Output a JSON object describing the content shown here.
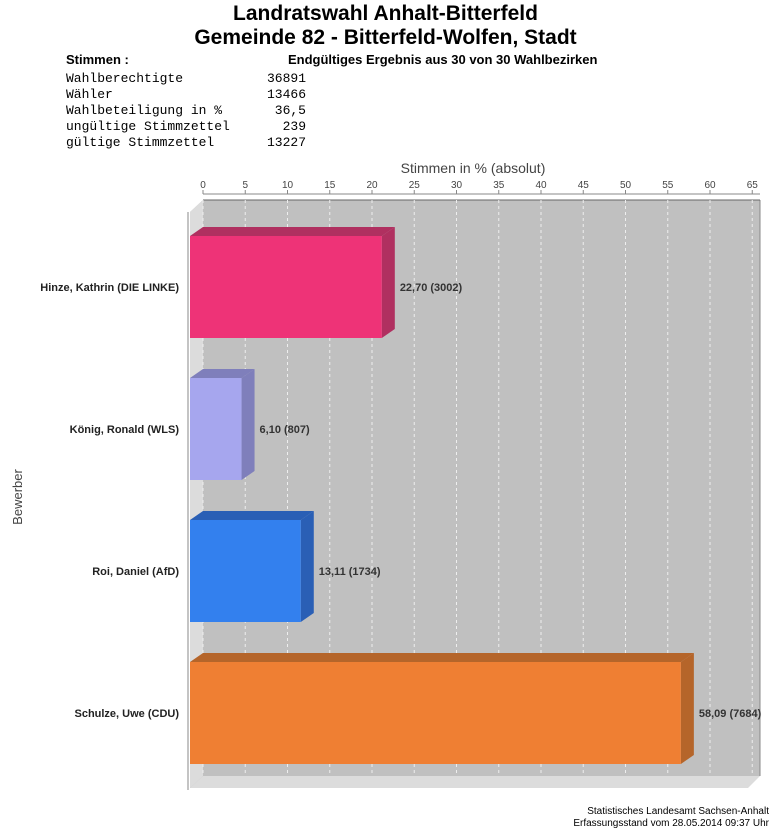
{
  "title": [
    "Landratswahl Anhalt-Bitterfeld",
    "Gemeinde 82 - Bitterfeld-Wolfen, Stadt"
  ],
  "stimmen_label": "Stimmen  :",
  "subtitle": "Endgültiges Ergebnis aus 30 von 30 Wahlbezirken",
  "stats": [
    {
      "label": "Wahlberechtigte",
      "value": "36891"
    },
    {
      "label": "Wähler",
      "value": "13466"
    },
    {
      "label": "Wahlbeteiligung in %",
      "value": "36,5"
    },
    {
      "label": "ungültige Stimmzettel",
      "value": "239"
    },
    {
      "label": "gültige Stimmzettel",
      "value": "13227"
    }
  ],
  "footer": [
    "Statistisches Landesamt Sachsen-Anhalt",
    "Erfassungsstand vom 28.05.2014 09:37 Uhr"
  ],
  "chart_data": {
    "type": "bar",
    "orientation": "horizontal",
    "xlabel": "Stimmen in % (absolut)",
    "ylabel": "Bewerber",
    "xlim": [
      0,
      66
    ],
    "ticks": [
      0,
      5,
      10,
      15,
      20,
      25,
      30,
      35,
      40,
      45,
      50,
      55,
      60,
      65
    ],
    "categories": [
      "Hinze, Kathrin (DIE LINKE)",
      "König, Ronald (WLS)",
      "Roi, Daniel (AfD)",
      "Schulze, Uwe (CDU)"
    ],
    "values": [
      22.7,
      6.1,
      13.11,
      58.09
    ],
    "absolute": [
      3002,
      807,
      1734,
      7684
    ],
    "labels": [
      "22,70 (3002)",
      "6,10 (807)",
      "13,11 (1734)",
      "58,09 (7684)"
    ],
    "colors": [
      "#ee3377",
      "#a6a6ee",
      "#3380ee",
      "#ef7f33"
    ],
    "side_colors": [
      "#b03060",
      "#7f7fbb",
      "#2a5fb5",
      "#b5652a"
    ]
  }
}
